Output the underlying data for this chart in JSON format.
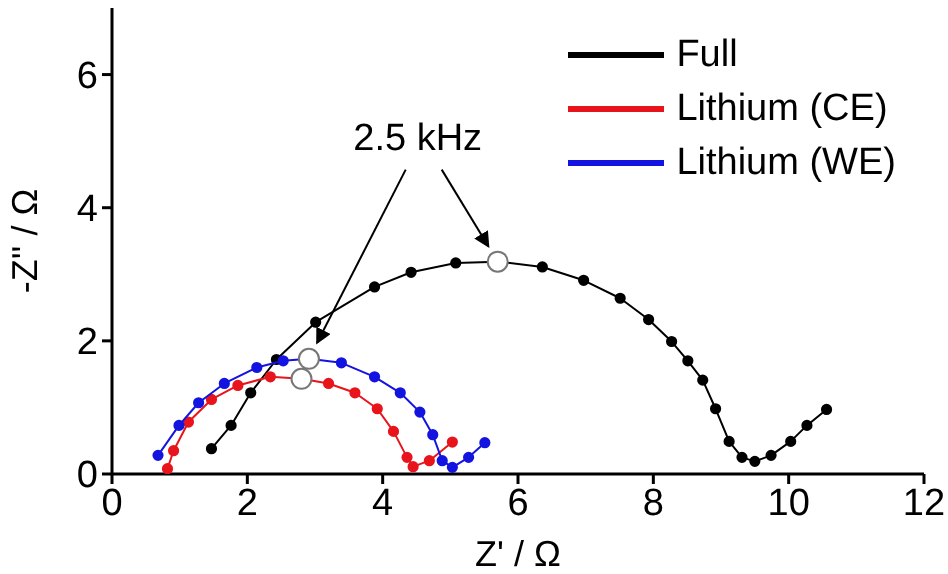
{
  "chart_data": {
    "type": "line",
    "xlabel": "Z' / Ω",
    "ylabel": "-Z'' / Ω",
    "xlim": [
      0,
      12
    ],
    "xticks": [
      0,
      2,
      4,
      6,
      8,
      10,
      12
    ],
    "ylim": [
      0,
      7
    ],
    "yticks": [
      0,
      2,
      4,
      6
    ],
    "legend": "top right",
    "marker": "circle",
    "line_style": "solid",
    "annotations": [
      {
        "text": "2.5 kHz",
        "x": 5.7,
        "y": 3.19
      }
    ],
    "series": [
      {
        "name": "Full",
        "color": "#000000",
        "x": [
          1.47,
          1.76,
          2.05,
          2.43,
          3.01,
          3.88,
          4.42,
          5.08,
          5.7,
          6.36,
          6.97,
          7.51,
          7.93,
          8.27,
          8.51,
          8.73,
          8.92,
          9.12,
          9.31,
          9.5,
          9.74,
          10.03,
          10.27,
          10.56
        ],
        "values": [
          0.38,
          0.73,
          1.22,
          1.72,
          2.28,
          2.81,
          3.03,
          3.17,
          3.19,
          3.11,
          2.91,
          2.64,
          2.32,
          1.99,
          1.7,
          1.41,
          0.98,
          0.49,
          0.25,
          0.19,
          0.28,
          0.49,
          0.73,
          0.97
        ]
      },
      {
        "name": "Lithium (CE)",
        "color": "#e8141c",
        "x": [
          0.82,
          0.91,
          1.13,
          1.47,
          1.86,
          2.34,
          2.8,
          3.2,
          3.59,
          3.92,
          4.16,
          4.36,
          4.45,
          4.69,
          5.03
        ],
        "values": [
          0.08,
          0.35,
          0.78,
          1.12,
          1.33,
          1.46,
          1.43,
          1.36,
          1.22,
          0.98,
          0.64,
          0.25,
          0.11,
          0.2,
          0.48
        ]
      },
      {
        "name": "Lithium (WE)",
        "color": "#1414e0",
        "x": [
          0.68,
          0.99,
          1.28,
          1.66,
          2.14,
          2.53,
          2.91,
          3.39,
          3.88,
          4.26,
          4.55,
          4.74,
          4.88,
          5.03,
          5.27,
          5.51
        ],
        "values": [
          0.28,
          0.73,
          1.07,
          1.36,
          1.6,
          1.7,
          1.73,
          1.67,
          1.46,
          1.22,
          0.93,
          0.59,
          0.2,
          0.1,
          0.25,
          0.47
        ]
      },
      {
        "type": "scatter",
        "color": "#ffffff",
        "x": [
          5.7,
          2.91,
          2.8
        ],
        "values": [
          3.19,
          1.73,
          1.43
        ]
      }
    ]
  }
}
